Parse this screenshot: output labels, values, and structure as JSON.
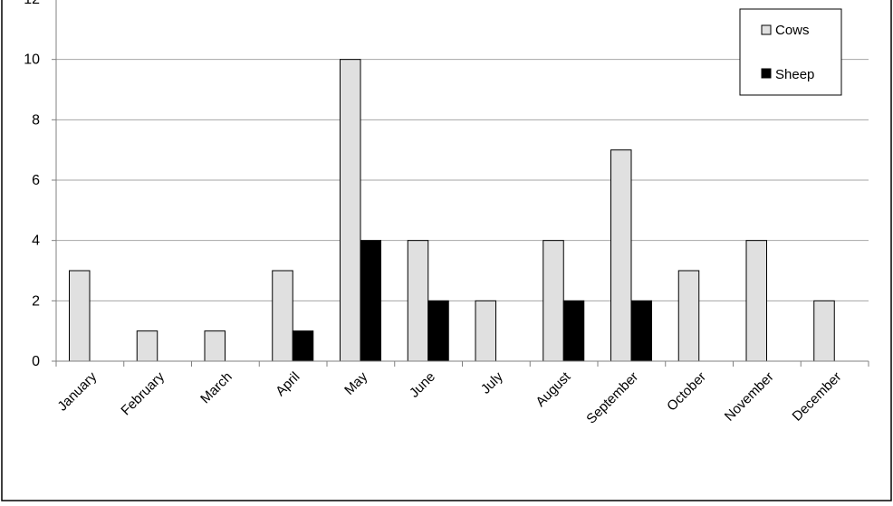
{
  "chart_data": {
    "type": "bar",
    "title": "",
    "xlabel": "",
    "ylabel": "",
    "ylim": [
      0,
      12
    ],
    "yticks": [
      0,
      2,
      4,
      6,
      8,
      10,
      12
    ],
    "grid": true,
    "legend_position": "top-right",
    "categories": [
      "January",
      "February",
      "March",
      "April",
      "May",
      "June",
      "July",
      "August",
      "September",
      "October",
      "November",
      "December"
    ],
    "series": [
      {
        "name": "Cows",
        "color": "#e0e0e0",
        "values": [
          3,
          1,
          1,
          3,
          10,
          4,
          2,
          4,
          7,
          3,
          4,
          2
        ]
      },
      {
        "name": "Sheep",
        "color": "#000000",
        "values": [
          0,
          0,
          0,
          1,
          4,
          2,
          0,
          2,
          2,
          0,
          0,
          0
        ]
      }
    ]
  }
}
